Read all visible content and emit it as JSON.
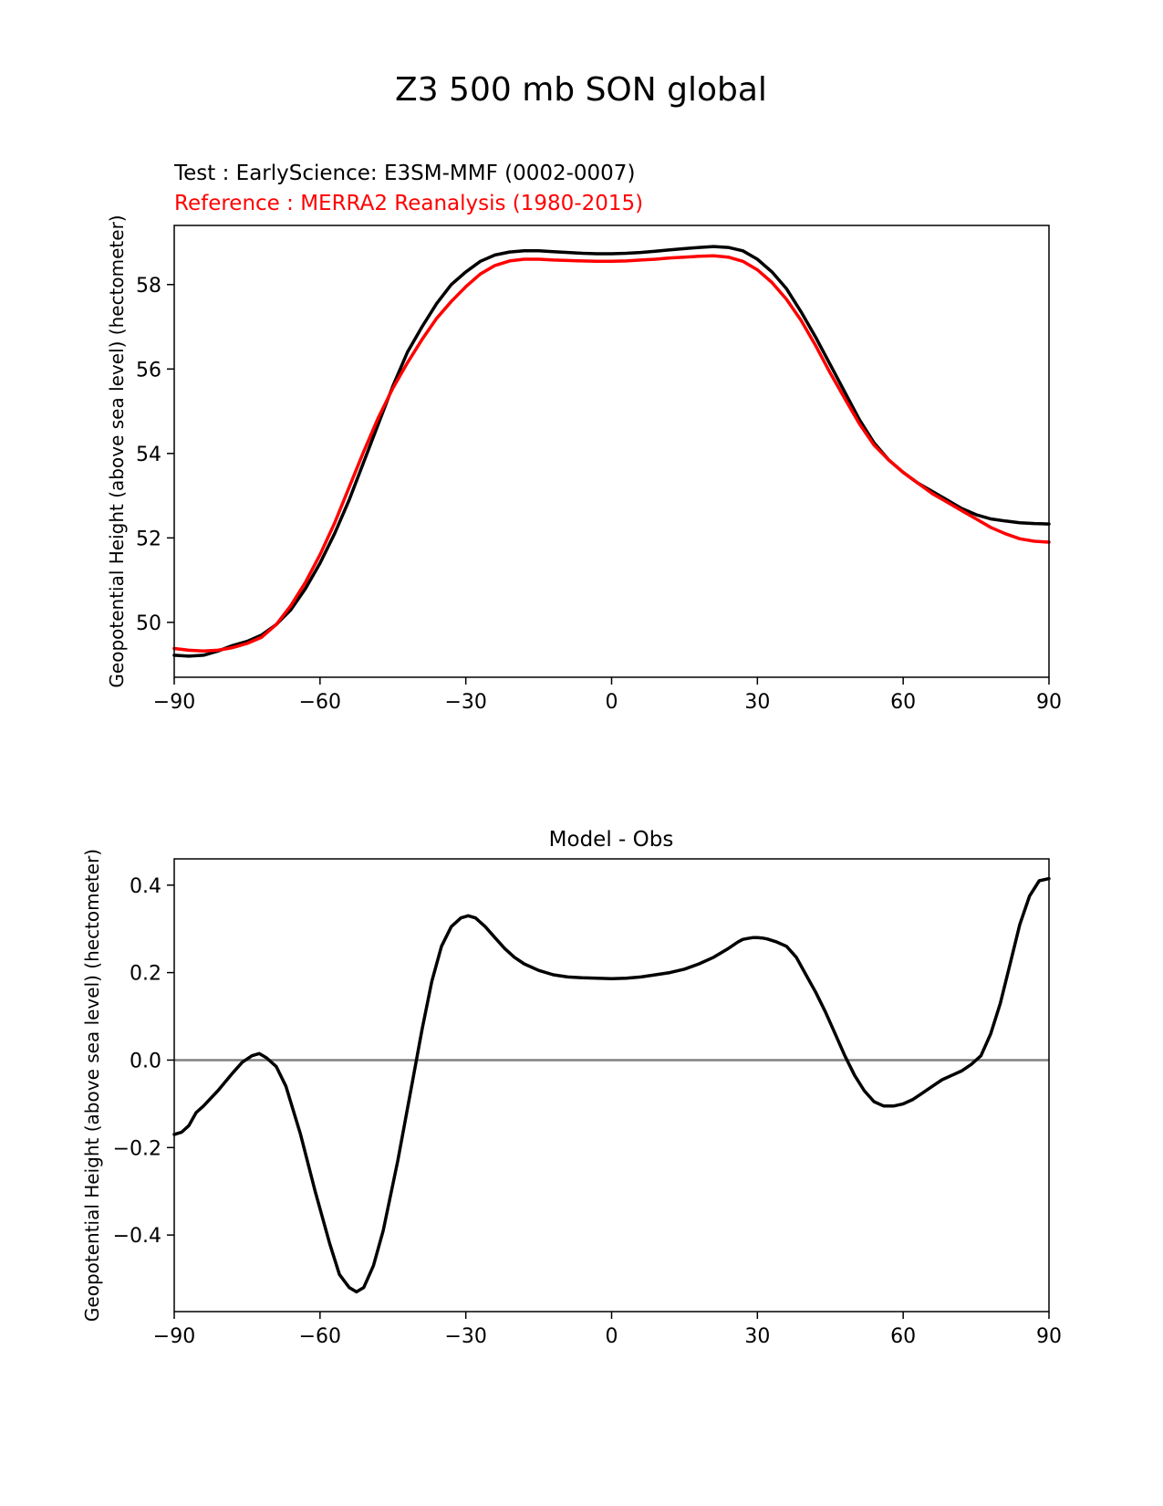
{
  "figure": {
    "title": "Z3 500 mb SON global"
  },
  "chart_data": [
    {
      "type": "line",
      "title": "",
      "legend": [
        {
          "text": "Test : EarlyScience: E3SM-MMF (0002-0007)",
          "color": "#000000"
        },
        {
          "text": "Reference : MERRA2 Reanalysis (1980-2015)",
          "color": "#ff0000"
        }
      ],
      "xlabel": "",
      "ylabel": "Geopotential Height (above sea level) (hectometer)",
      "xlim": [
        -90,
        90
      ],
      "ylim": [
        48.7,
        59.4
      ],
      "xticks": [
        -90,
        -60,
        -30,
        0,
        30,
        60,
        90
      ],
      "yticks": [
        50,
        52,
        54,
        56,
        58
      ],
      "x_tick_labels": [
        "−90",
        "−60",
        "−30",
        "0",
        "30",
        "60",
        "90"
      ],
      "y_tick_labels": [
        "50",
        "52",
        "54",
        "56",
        "58"
      ],
      "grid": false,
      "legend_placement": "above-left",
      "series": [
        {
          "color": "#000000",
          "x": [
            -90,
            -87,
            -84,
            -81,
            -78,
            -75,
            -72,
            -69,
            -66,
            -63,
            -60,
            -57,
            -54,
            -51,
            -48,
            -45,
            -42,
            -39,
            -36,
            -33,
            -30,
            -27,
            -24,
            -21,
            -18,
            -15,
            -12,
            -9,
            -6,
            -3,
            0,
            3,
            6,
            9,
            12,
            15,
            18,
            21,
            24,
            27,
            30,
            33,
            36,
            39,
            42,
            45,
            48,
            51,
            54,
            57,
            60,
            63,
            66,
            69,
            72,
            75,
            78,
            81,
            84,
            87,
            90
          ],
          "y": [
            49.22,
            49.2,
            49.22,
            49.32,
            49.45,
            49.55,
            49.7,
            49.95,
            50.3,
            50.8,
            51.4,
            52.1,
            52.9,
            53.8,
            54.7,
            55.6,
            56.4,
            57.0,
            57.55,
            58.0,
            58.3,
            58.55,
            58.7,
            58.77,
            58.8,
            58.8,
            58.78,
            58.76,
            58.74,
            58.73,
            58.73,
            58.74,
            58.76,
            58.79,
            58.82,
            58.85,
            58.88,
            58.9,
            58.88,
            58.8,
            58.6,
            58.3,
            57.9,
            57.35,
            56.75,
            56.1,
            55.45,
            54.8,
            54.25,
            53.85,
            53.55,
            53.3,
            53.1,
            52.9,
            52.7,
            52.55,
            52.45,
            52.4,
            52.36,
            52.34,
            52.33
          ]
        },
        {
          "color": "#ff0000",
          "x": [
            -90,
            -87,
            -84,
            -81,
            -78,
            -75,
            -72,
            -69,
            -66,
            -63,
            -60,
            -57,
            -54,
            -51,
            -48,
            -45,
            -42,
            -39,
            -36,
            -33,
            -30,
            -27,
            -24,
            -21,
            -18,
            -15,
            -12,
            -9,
            -6,
            -3,
            0,
            3,
            6,
            9,
            12,
            15,
            18,
            21,
            24,
            27,
            30,
            33,
            36,
            39,
            42,
            45,
            48,
            51,
            54,
            57,
            60,
            63,
            66,
            69,
            72,
            75,
            78,
            81,
            84,
            87,
            90
          ],
          "y": [
            49.38,
            49.34,
            49.32,
            49.34,
            49.4,
            49.5,
            49.65,
            49.95,
            50.4,
            50.95,
            51.6,
            52.35,
            53.2,
            54.05,
            54.85,
            55.55,
            56.15,
            56.7,
            57.2,
            57.6,
            57.95,
            58.25,
            58.45,
            58.56,
            58.6,
            58.6,
            58.58,
            58.57,
            58.56,
            58.55,
            58.55,
            58.56,
            58.58,
            58.6,
            58.63,
            58.65,
            58.67,
            58.68,
            58.65,
            58.55,
            58.35,
            58.05,
            57.65,
            57.15,
            56.55,
            55.9,
            55.3,
            54.7,
            54.2,
            53.85,
            53.55,
            53.3,
            53.05,
            52.85,
            52.65,
            52.45,
            52.25,
            52.1,
            51.98,
            51.92,
            51.9
          ]
        }
      ]
    },
    {
      "type": "line",
      "title": "Model - Obs",
      "xlabel": "",
      "ylabel": "Geopotential Height (above sea level) (hectometer)",
      "xlim": [
        -90,
        90
      ],
      "ylim": [
        -0.575,
        0.46
      ],
      "xticks": [
        -90,
        -60,
        -30,
        0,
        30,
        60,
        90
      ],
      "yticks": [
        -0.4,
        -0.2,
        0.0,
        0.2,
        0.4
      ],
      "x_tick_labels": [
        "−90",
        "−60",
        "−30",
        "0",
        "30",
        "60",
        "90"
      ],
      "y_tick_labels": [
        "−0.4",
        "−0.2",
        "0.0",
        "0.2",
        "0.4"
      ],
      "grid": false,
      "reference_line": {
        "y": 0,
        "color": "#808080"
      },
      "series": [
        {
          "color": "#000000",
          "x": [
            -90,
            -88.5,
            -87,
            -85.5,
            -84,
            -81,
            -78,
            -76,
            -74,
            -72.5,
            -71,
            -69,
            -67,
            -64,
            -61,
            -58,
            -56,
            -54,
            -52.5,
            -51,
            -49,
            -47,
            -44,
            -41,
            -39,
            -37,
            -35,
            -33,
            -31,
            -29.5,
            -28,
            -26,
            -24,
            -22,
            -20,
            -18,
            -15,
            -12,
            -9,
            -6,
            -3,
            0,
            3,
            6,
            9,
            12,
            15,
            18,
            21,
            24,
            26,
            27,
            28,
            29,
            30,
            31,
            32,
            34,
            36,
            38,
            40,
            42,
            44,
            46,
            48,
            50,
            52,
            54,
            56,
            58,
            60,
            62,
            64,
            66,
            68,
            70,
            72,
            74,
            76,
            78,
            80,
            82,
            84,
            86,
            88,
            90
          ],
          "y": [
            -0.17,
            -0.165,
            -0.15,
            -0.12,
            -0.105,
            -0.07,
            -0.03,
            -0.005,
            0.01,
            0.015,
            0.005,
            -0.015,
            -0.06,
            -0.17,
            -0.3,
            -0.42,
            -0.49,
            -0.52,
            -0.53,
            -0.52,
            -0.47,
            -0.39,
            -0.23,
            -0.05,
            0.07,
            0.18,
            0.26,
            0.305,
            0.325,
            0.33,
            0.325,
            0.305,
            0.28,
            0.255,
            0.235,
            0.22,
            0.205,
            0.195,
            0.19,
            0.188,
            0.187,
            0.186,
            0.187,
            0.19,
            0.195,
            0.2,
            0.208,
            0.22,
            0.235,
            0.255,
            0.27,
            0.276,
            0.278,
            0.28,
            0.28,
            0.279,
            0.277,
            0.27,
            0.26,
            0.235,
            0.195,
            0.155,
            0.11,
            0.06,
            0.01,
            -0.035,
            -0.07,
            -0.095,
            -0.105,
            -0.105,
            -0.1,
            -0.09,
            -0.075,
            -0.06,
            -0.045,
            -0.035,
            -0.025,
            -0.01,
            0.01,
            0.06,
            0.13,
            0.22,
            0.31,
            0.375,
            0.41,
            0.415
          ]
        }
      ]
    }
  ]
}
